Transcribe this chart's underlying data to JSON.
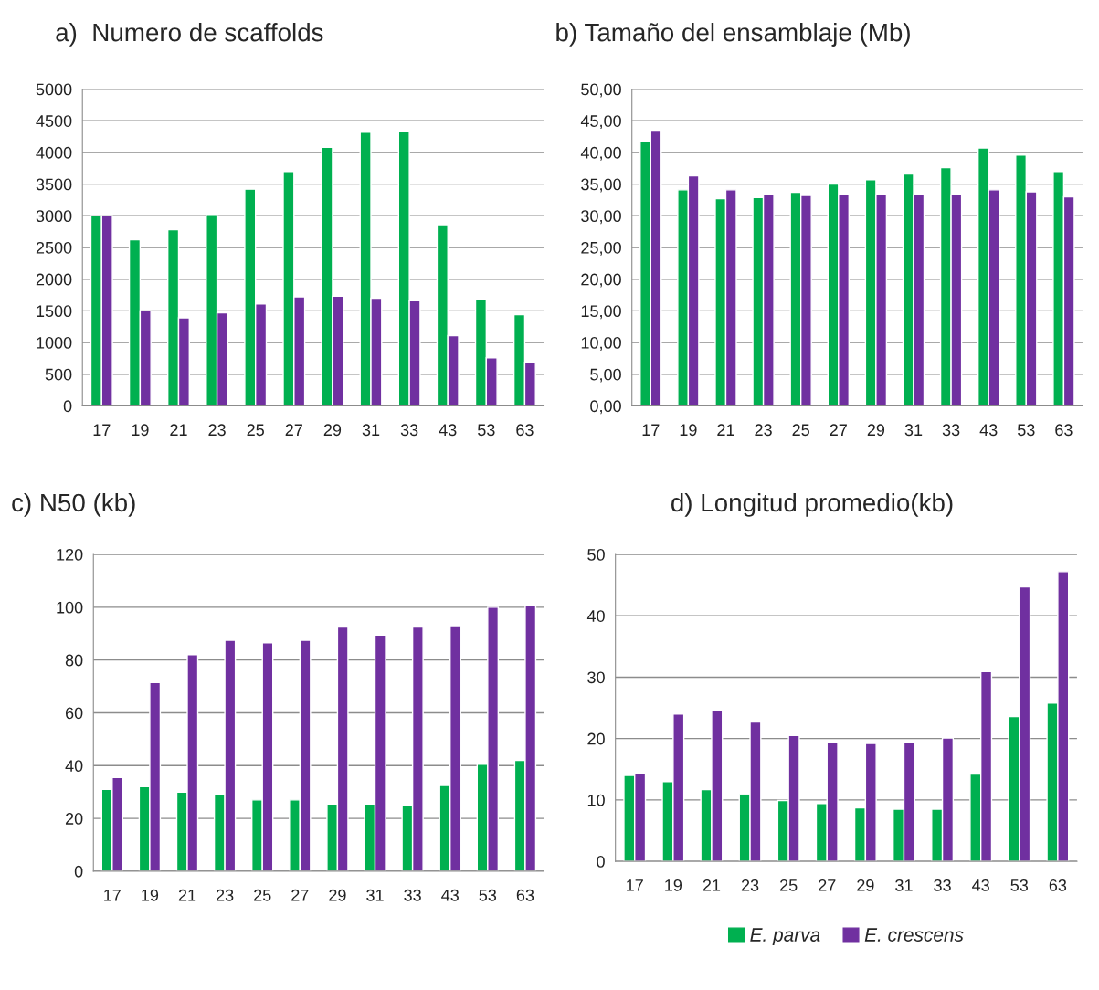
{
  "chart_data": [
    {
      "type": "bar",
      "title": "a)  Numero de scaffolds",
      "categories": [
        "17",
        "19",
        "21",
        "23",
        "25",
        "27",
        "29",
        "31",
        "33",
        "43",
        "53",
        "63"
      ],
      "series": [
        {
          "color": "#00b050",
          "values": [
            3000,
            2620,
            2780,
            3020,
            3420,
            3700,
            4080,
            4320,
            4340,
            2860,
            1680,
            1440
          ]
        },
        {
          "color": "#7030a0",
          "values": [
            3000,
            1500,
            1390,
            1470,
            1610,
            1720,
            1730,
            1700,
            1660,
            1110,
            760,
            690
          ]
        }
      ],
      "ylim": [
        0,
        5000
      ],
      "yticks": [
        0,
        500,
        1000,
        1500,
        2000,
        2500,
        3000,
        3500,
        4000,
        4500,
        5000
      ],
      "grid": "y",
      "legend": false
    },
    {
      "type": "bar",
      "title": "b) Tamaño del ensamblaje (Mb)",
      "categories": [
        "17",
        "19",
        "21",
        "23",
        "25",
        "27",
        "29",
        "31",
        "33",
        "43",
        "53",
        "63"
      ],
      "series": [
        {
          "color": "#00b050",
          "values": [
            41.7,
            34.1,
            32.7,
            32.9,
            33.7,
            35.0,
            35.7,
            36.6,
            37.6,
            40.7,
            39.6,
            37.0
          ]
        },
        {
          "color": "#7030a0",
          "values": [
            43.5,
            36.3,
            34.1,
            33.3,
            33.2,
            33.3,
            33.3,
            33.3,
            33.3,
            34.1,
            33.8,
            33.0
          ]
        }
      ],
      "ylim": [
        0,
        50
      ],
      "yticks": [
        {
          "value": 0,
          "label": "0,00"
        },
        {
          "value": 5,
          "label": "5,00"
        },
        {
          "value": 10,
          "label": "10,00"
        },
        {
          "value": 15,
          "label": "15,00"
        },
        {
          "value": 20,
          "label": "20,00"
        },
        {
          "value": 25,
          "label": "25,00"
        },
        {
          "value": 30,
          "label": "30,00"
        },
        {
          "value": 35,
          "label": "35,00"
        },
        {
          "value": 40,
          "label": "40,00"
        },
        {
          "value": 45,
          "label": "45,00"
        },
        {
          "value": 50,
          "label": "50,00"
        }
      ],
      "grid": "y",
      "legend": false
    },
    {
      "type": "bar",
      "title": "c) N50 (kb)",
      "categories": [
        "17",
        "19",
        "21",
        "23",
        "25",
        "27",
        "29",
        "31",
        "33",
        "43",
        "53",
        "63"
      ],
      "series": [
        {
          "color": "#00b050",
          "values": [
            31,
            32,
            30,
            29,
            27,
            27,
            25.5,
            25.5,
            25,
            32.5,
            40.5,
            42
          ]
        },
        {
          "color": "#7030a0",
          "values": [
            35.5,
            71.5,
            82,
            87.5,
            86.5,
            87.5,
            92.5,
            89.5,
            92.5,
            93,
            100,
            100.5
          ]
        }
      ],
      "ylim": [
        0,
        120
      ],
      "yticks": [
        0,
        20,
        40,
        60,
        80,
        100,
        120
      ],
      "grid": "y",
      "legend": false
    },
    {
      "type": "bar",
      "title": "d) Longitud promedio(kb)",
      "categories": [
        "17",
        "19",
        "21",
        "23",
        "25",
        "27",
        "29",
        "31",
        "33",
        "43",
        "53",
        "63"
      ],
      "series": [
        {
          "name": "E. parva",
          "color": "#00b050",
          "values": [
            14,
            13,
            11.7,
            10.9,
            9.9,
            9.4,
            8.7,
            8.5,
            8.5,
            14.2,
            23.6,
            25.8
          ]
        },
        {
          "name": "E. crescens",
          "color": "#7030a0",
          "values": [
            14.4,
            24,
            24.5,
            22.7,
            20.5,
            19.4,
            19.2,
            19.4,
            20.1,
            30.9,
            44.7,
            47.2
          ]
        }
      ],
      "ylim": [
        0,
        50
      ],
      "yticks": [
        0,
        10,
        20,
        30,
        40,
        50
      ],
      "grid": "y",
      "legend": "bottom"
    }
  ]
}
